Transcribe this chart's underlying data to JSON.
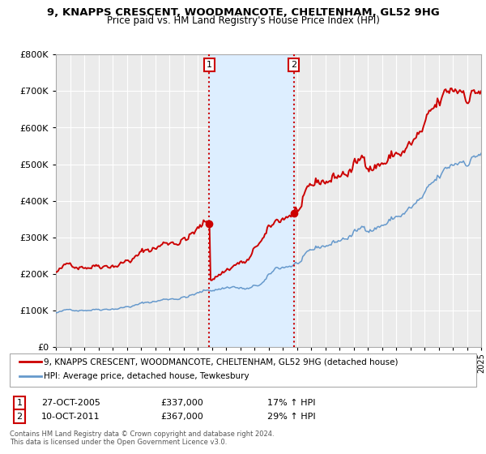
{
  "title": "9, KNAPPS CRESCENT, WOODMANCOTE, CHELTENHAM, GL52 9HG",
  "subtitle": "Price paid vs. HM Land Registry's House Price Index (HPI)",
  "red_line_label": "9, KNAPPS CRESCENT, WOODMANCOTE, CHELTENHAM, GL52 9HG (detached house)",
  "blue_line_label": "HPI: Average price, detached house, Tewkesbury",
  "marker1_date": "27-OCT-2005",
  "marker1_price": 337000,
  "marker1_hpi": "17% ↑ HPI",
  "marker1_x": 2005.82,
  "marker2_date": "10-OCT-2011",
  "marker2_price": 367000,
  "marker2_hpi": "29% ↑ HPI",
  "marker2_x": 2011.78,
  "footer": "Contains HM Land Registry data © Crown copyright and database right 2024.\nThis data is licensed under the Open Government Licence v3.0.",
  "xmin": 1995,
  "xmax": 2025,
  "ymin": 0,
  "ymax": 800000,
  "red_color": "#cc0000",
  "blue_color": "#6699cc",
  "shade_color": "#ddeeff",
  "plot_bg_color": "#ebebeb",
  "grid_color": "#ffffff"
}
